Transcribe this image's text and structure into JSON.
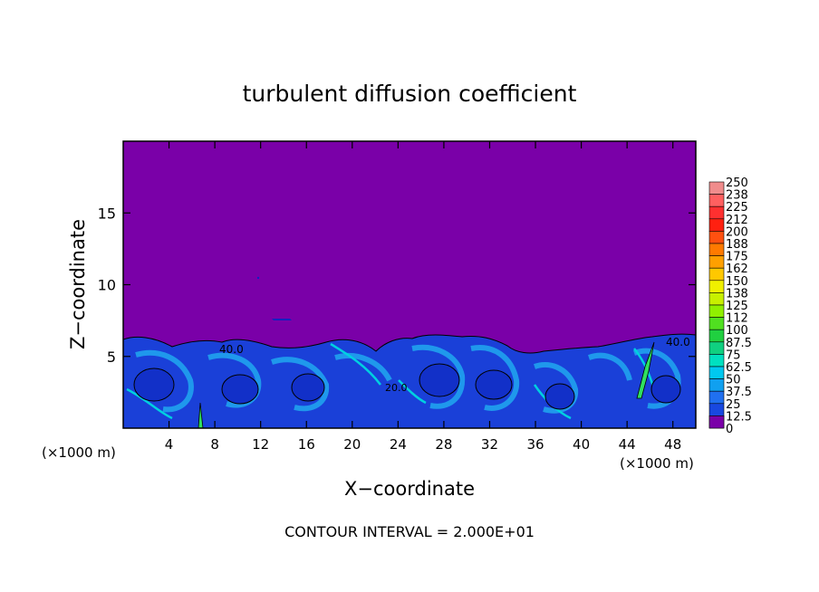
{
  "chart_data": {
    "type": "heatmap",
    "title": "turbulent diffusion coefficient",
    "xlabel": "X−coordinate",
    "ylabel": "Z−coordinate",
    "x_unit_left": "(×1000 m)",
    "x_unit_right": "(×1000 m)",
    "footer": "CONTOUR INTERVAL = 2.000E+01",
    "xlim": [
      0,
      50
    ],
    "ylim": [
      0,
      20
    ],
    "x_ticks": [
      "4",
      "8",
      "12",
      "16",
      "20",
      "24",
      "28",
      "32",
      "36",
      "40",
      "44",
      "48"
    ],
    "y_ticks": [
      "5",
      "10",
      "15"
    ],
    "contour_labels": [
      "40.0",
      "20.0",
      "40.0"
    ],
    "colorbar": {
      "labels": [
        "250",
        "238",
        "225",
        "212",
        "200",
        "188",
        "175",
        "162",
        "150",
        "138",
        "125",
        "112",
        "100",
        "87.5",
        "75",
        "62.5",
        "50",
        "37.5",
        "25",
        "12.5",
        "0"
      ],
      "colors": [
        "#f08c8c",
        "#ff6060",
        "#ff3030",
        "#ff2010",
        "#ff5010",
        "#ff7a00",
        "#ffa000",
        "#ffc800",
        "#f0f000",
        "#c8f000",
        "#90f000",
        "#50e020",
        "#20d040",
        "#10d080",
        "#00e0c0",
        "#00c8f0",
        "#10a0f0",
        "#2070f0",
        "#1848e0",
        "#1020c0",
        "#7a00a8"
      ]
    }
  }
}
